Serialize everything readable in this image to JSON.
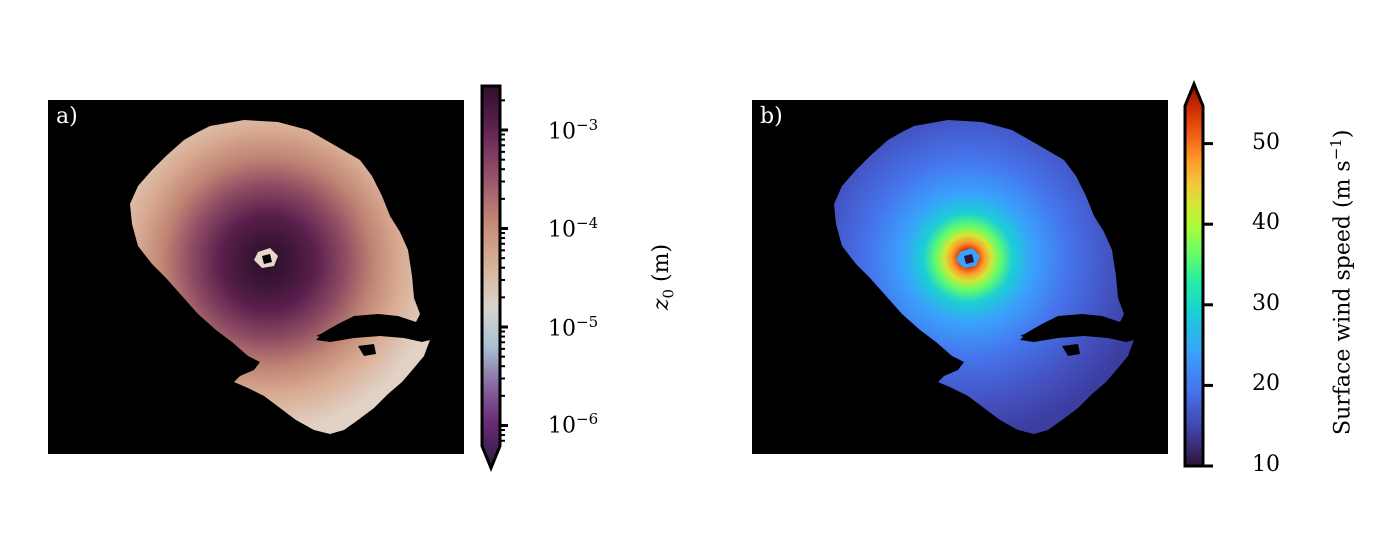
{
  "chart_data": [
    {
      "type": "heatmap",
      "panel_label": "a)",
      "colorbar": {
        "label_symbol": "z",
        "label_subscript": "0",
        "label_unit": "(m)",
        "scale": "log",
        "range": [
          "1e-6.3",
          "1e-2.6"
        ],
        "ticks": [
          {
            "base": "10",
            "exp": "−3",
            "value": 0.001
          },
          {
            "base": "10",
            "exp": "−4",
            "value": 0.0001
          },
          {
            "base": "10",
            "exp": "−5",
            "value": 1e-05
          },
          {
            "base": "10",
            "exp": "−6",
            "value": 1e-06
          }
        ],
        "extend": "both",
        "colormap": [
          "#2a1a40",
          "#6a2b74",
          "#a06099",
          "#c8b8c8",
          "#d9c2ae",
          "#cf9e82",
          "#a8606a",
          "#5a1f4d",
          "#2e0f2c"
        ]
      },
      "background": "#000000"
    },
    {
      "type": "heatmap",
      "panel_label": "b)",
      "colorbar": {
        "label": "Surface wind speed",
        "label_unit": "(m s",
        "label_unit_exp": "−1",
        "label_unit_close": ")",
        "scale": "linear",
        "range": [
          10,
          56
        ],
        "ticks": [
          {
            "label": "50",
            "value": 50
          },
          {
            "label": "40",
            "value": 40
          },
          {
            "label": "30",
            "value": 30
          },
          {
            "label": "20",
            "value": 20
          },
          {
            "label": "10",
            "value": 10
          }
        ],
        "extend": "max",
        "colormap": [
          "#30123b",
          "#4145ab",
          "#4675ed",
          "#39a2fc",
          "#1bcfd4",
          "#24eca6",
          "#61fc6c",
          "#a4fc3b",
          "#d1e834",
          "#f3c63a",
          "#fe9b2d",
          "#f36315",
          "#d93806",
          "#b11901",
          "#7a0402"
        ]
      },
      "background": "#000000"
    }
  ]
}
